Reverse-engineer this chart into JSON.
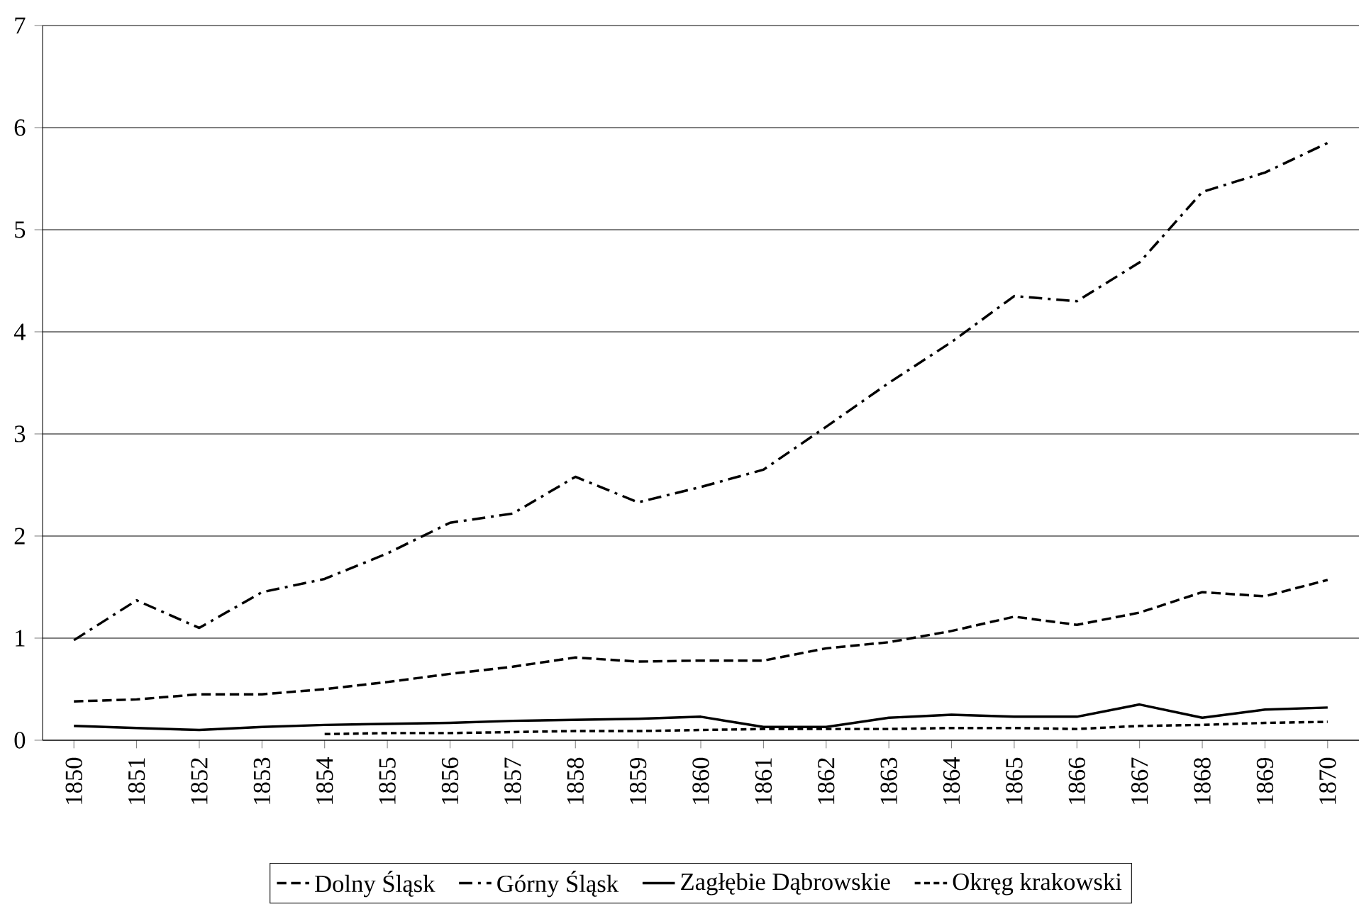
{
  "chart_data": {
    "type": "line",
    "categories": [
      "1850",
      "1851",
      "1852",
      "1853",
      "1854",
      "1855",
      "1856",
      "1857",
      "1858",
      "1859",
      "1860",
      "1861",
      "1862",
      "1863",
      "1864",
      "1865",
      "1866",
      "1867",
      "1868",
      "1869",
      "1870"
    ],
    "series": [
      {
        "name": "Dolny Śląsk",
        "color": "#000000",
        "line_style": "dashed",
        "values": [
          0.38,
          0.4,
          0.45,
          0.45,
          0.5,
          0.57,
          0.65,
          0.72,
          0.81,
          0.77,
          0.78,
          0.78,
          0.9,
          0.96,
          1.07,
          1.21,
          1.13,
          1.25,
          1.45,
          1.41,
          1.57
        ]
      },
      {
        "name": "Górny Śląsk",
        "color": "#000000",
        "line_style": "dashdot",
        "values": [
          0.98,
          1.37,
          1.1,
          1.45,
          1.58,
          1.83,
          2.13,
          2.22,
          2.58,
          2.33,
          2.48,
          2.65,
          3.07,
          3.5,
          3.9,
          4.35,
          4.3,
          4.68,
          5.37,
          5.56,
          5.85
        ]
      },
      {
        "name": "Zagłębie Dąbrowskie",
        "color": "#000000",
        "line_style": "solid",
        "values": [
          0.14,
          0.12,
          0.1,
          0.13,
          0.15,
          0.16,
          0.17,
          0.19,
          0.2,
          0.21,
          0.23,
          0.13,
          0.13,
          0.22,
          0.25,
          0.23,
          0.23,
          0.35,
          0.22,
          0.3,
          0.32
        ]
      },
      {
        "name": "Okręg krakowski",
        "color": "#000000",
        "line_style": "dotted",
        "values": [
          null,
          null,
          null,
          null,
          0.06,
          0.07,
          0.07,
          0.08,
          0.09,
          0.09,
          0.1,
          0.11,
          0.11,
          0.11,
          0.12,
          0.12,
          0.11,
          0.14,
          0.15,
          0.17,
          0.18
        ]
      }
    ],
    "ylim": [
      0,
      7
    ],
    "yticks": [
      0,
      1,
      2,
      3,
      4,
      5,
      6,
      7
    ],
    "grid": "y",
    "legend": "bottom",
    "marker": "none"
  }
}
